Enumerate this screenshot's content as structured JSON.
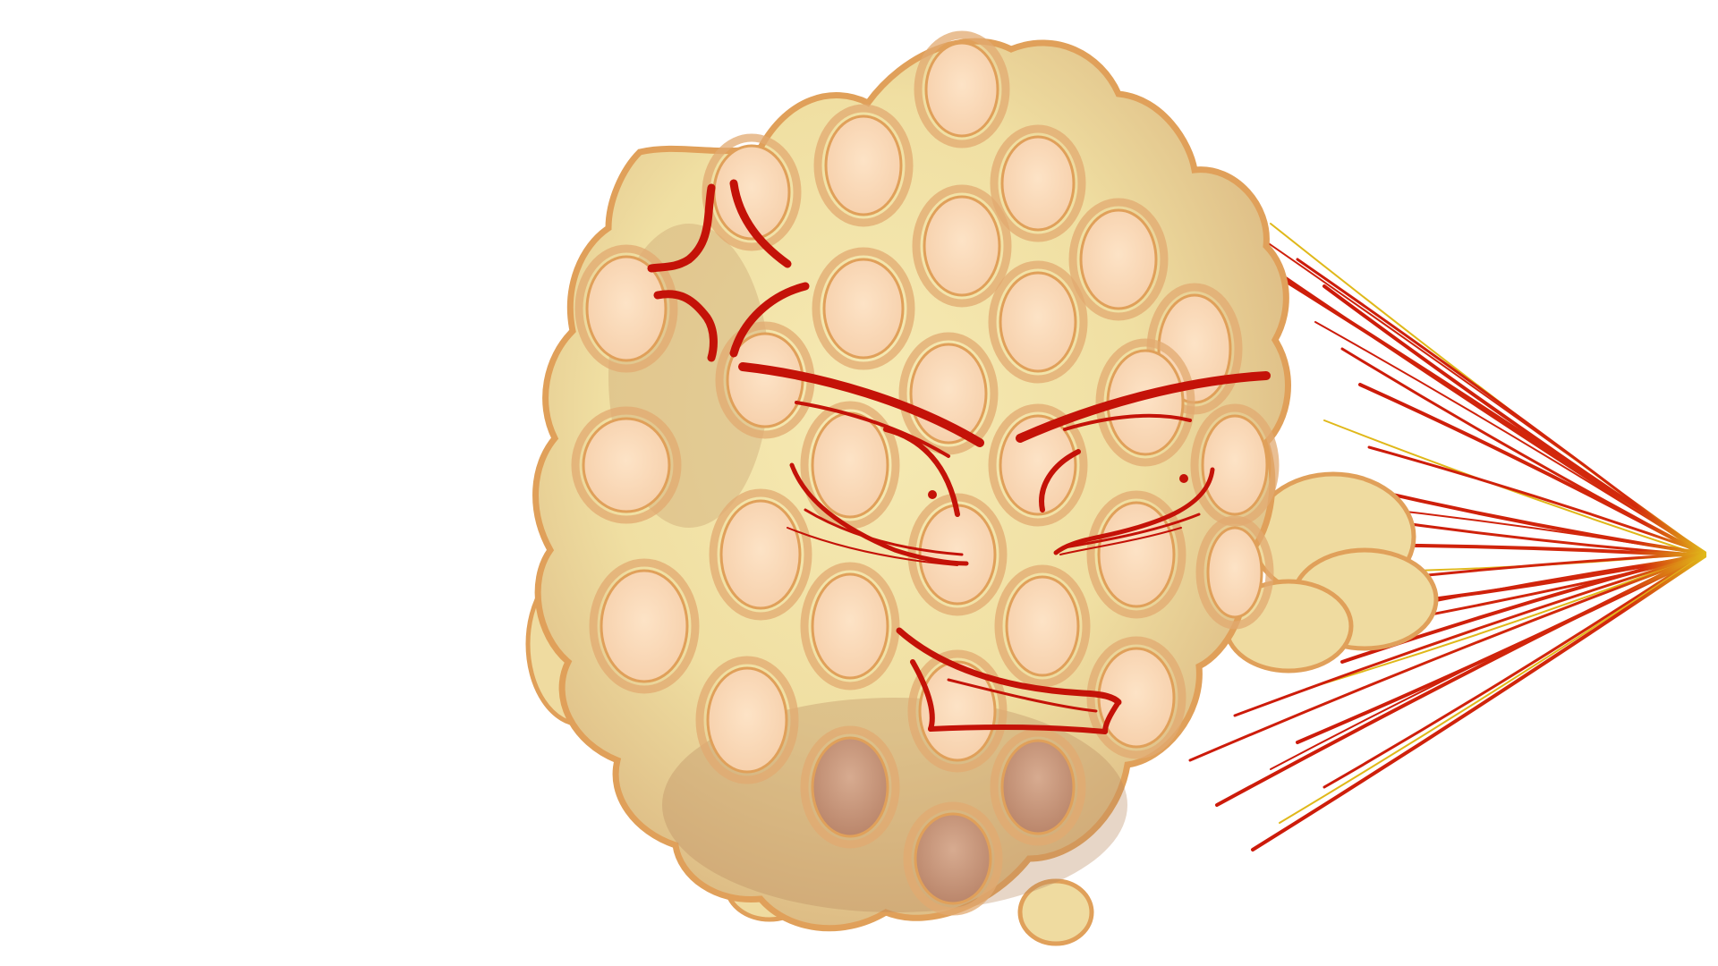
{
  "scene": {
    "subject": "angry-egg-waffle-character",
    "background": "#ffffff",
    "colors": {
      "waffle_fill": "#f2e3a6",
      "waffle_fill_shadow": "#d9b982",
      "waffle_outline": "#e0a05a",
      "cell_fill": "#fde0c2",
      "cell_fill_shadow": "#c99a83",
      "cell_rim": "#e2aa70",
      "face_lines": "#c41208",
      "streak_red": "#cc1a0a",
      "streak_yellow": "#e0b81a"
    },
    "icons": {
      "anger_mark": "anger-vein-icon",
      "speed_lines": "speed-lines-icon"
    }
  }
}
